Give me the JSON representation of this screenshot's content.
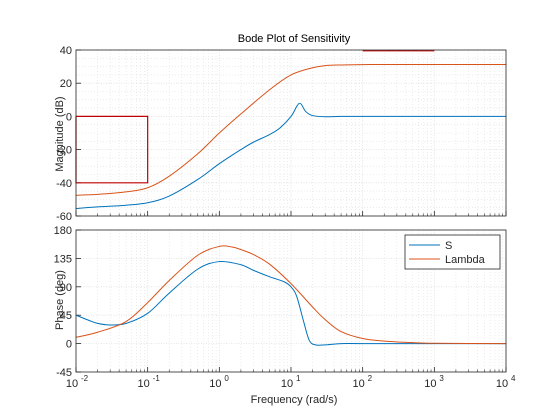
{
  "chart_data": [
    {
      "type": "line",
      "title": "Bode Plot of Sensitivity",
      "xlabel": "",
      "ylabel": "Magnitude (dB)",
      "xscale": "log",
      "xlim": [
        0.01,
        10000
      ],
      "ylim": [
        -60,
        40
      ],
      "yticks": [
        -60,
        -40,
        -20,
        0,
        20,
        40
      ],
      "grid": true,
      "series": [
        {
          "name": "S",
          "color": "#0072BD",
          "x": [
            0.01,
            0.02,
            0.05,
            0.1,
            0.2,
            0.5,
            1,
            2,
            3,
            5,
            7,
            10,
            12,
            13,
            14,
            16,
            20,
            30,
            50,
            100,
            1000,
            10000
          ],
          "y": [
            -55.5,
            -54.5,
            -53.5,
            -52,
            -48,
            -38,
            -28.5,
            -20,
            -15.5,
            -11,
            -7,
            0,
            6,
            7.8,
            7.2,
            3,
            0.5,
            -0.2,
            0,
            0,
            0,
            0
          ]
        },
        {
          "name": "Lambda",
          "color": "#D95319",
          "x": [
            0.01,
            0.02,
            0.05,
            0.1,
            0.2,
            0.5,
            1,
            2,
            5,
            10,
            20,
            30,
            50,
            100,
            200,
            1000,
            10000
          ],
          "y": [
            -47.5,
            -47,
            -45.5,
            -43,
            -36,
            -22.5,
            -10,
            1.5,
            16,
            25,
            29.3,
            30.6,
            31,
            31.2,
            31.3,
            31.3,
            31.3
          ]
        }
      ],
      "bounds": [
        {
          "x": [
            0.01,
            0.01,
            0.1,
            0.1,
            0.01
          ],
          "y": [
            0,
            -40,
            -40,
            0,
            0
          ],
          "color": "#C00000"
        },
        {
          "x": [
            100,
            1000
          ],
          "y": [
            39.5,
            39.5
          ],
          "color": "#C00000"
        }
      ]
    },
    {
      "type": "line",
      "title": "",
      "xlabel": "Frequency  (rad/s)",
      "ylabel": "Phase (deg)",
      "xscale": "log",
      "xlim": [
        0.01,
        10000
      ],
      "ylim": [
        -45,
        180
      ],
      "yticks": [
        -45,
        0,
        45,
        90,
        135,
        180
      ],
      "grid": true,
      "legend": "top-right",
      "series": [
        {
          "name": "S",
          "color": "#0072BD",
          "x": [
            0.01,
            0.015,
            0.02,
            0.03,
            0.05,
            0.1,
            0.2,
            0.5,
            1,
            2,
            3,
            5,
            8,
            10,
            12,
            15,
            18,
            22,
            30,
            50,
            100,
            1000,
            10000
          ],
          "y": [
            45,
            37,
            32,
            29.5,
            32,
            48,
            80,
            118,
            130,
            125,
            116,
            106,
            98,
            90,
            75,
            35,
            5,
            -2,
            -2,
            0,
            0,
            0,
            0
          ]
        },
        {
          "name": "Lambda",
          "color": "#D95319",
          "x": [
            0.01,
            0.02,
            0.05,
            0.1,
            0.2,
            0.5,
            1,
            1.5,
            2,
            3,
            5,
            10,
            20,
            30,
            50,
            100,
            200,
            500,
            1000,
            10000
          ],
          "y": [
            10,
            18,
            35,
            65,
            100,
            140,
            154,
            153,
            149,
            141,
            126,
            95,
            58,
            38,
            19,
            8,
            4,
            1.5,
            0.5,
            0
          ]
        }
      ]
    }
  ],
  "x_tick_labels": [
    "10",
    "10",
    "10",
    "10",
    "10",
    "10",
    "10"
  ],
  "x_tick_exponents": [
    "-2",
    "-1",
    "0",
    "1",
    "2",
    "3",
    "4"
  ],
  "colors": {
    "axis": "#262626",
    "grid": "#DFDFDF",
    "background": "#FFFFFF"
  }
}
